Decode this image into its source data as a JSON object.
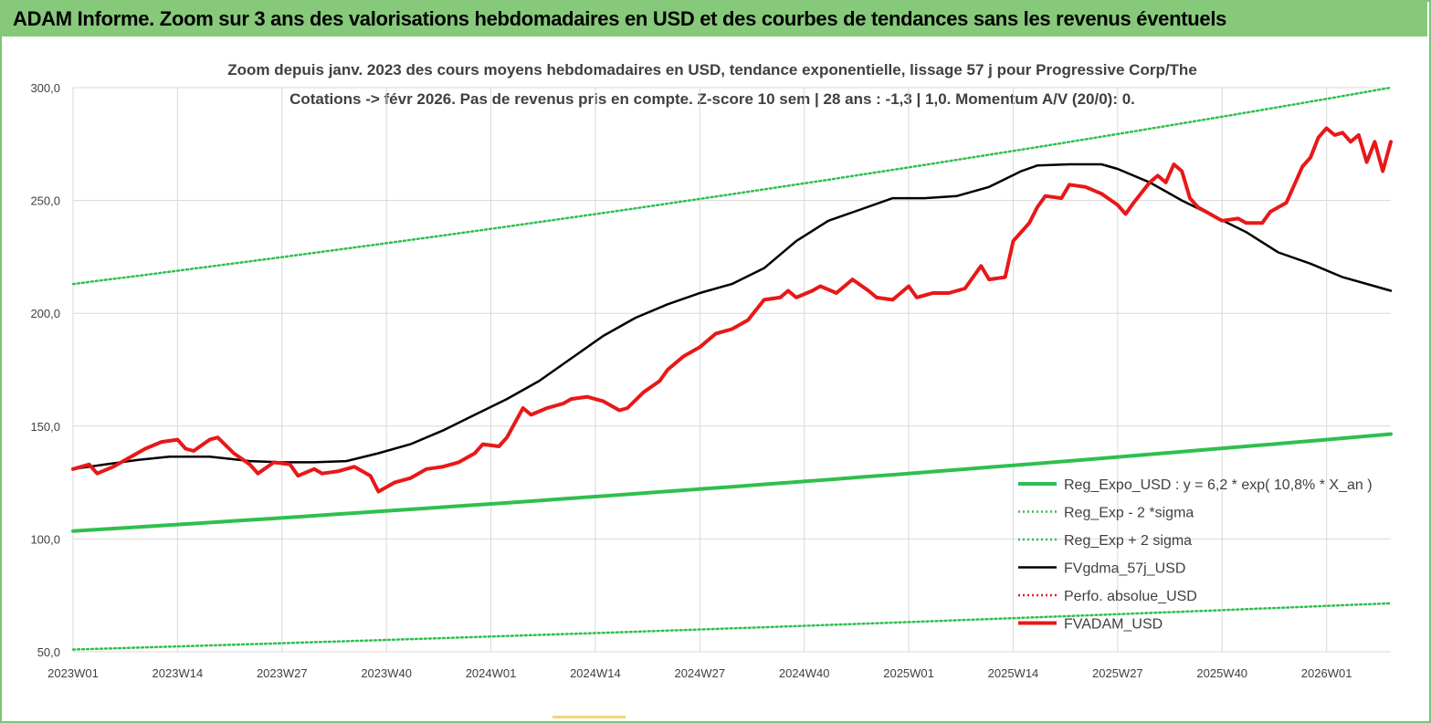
{
  "banner": {
    "title": "ADAM Informe. Zoom sur 3 ans des valorisations hebdomadaires en USD et des courbes de tendances sans les revenus éventuels"
  },
  "chart_data": {
    "type": "line",
    "title_line1": "Zoom depuis janv. 2023 des cours moyens hebdomadaires en USD, tendance exponentielle, lissage 57 j pour Progressive Corp/The",
    "title_line2": "Cotations -> févr 2026.  Pas de revenus pris en compte. Z-score 10 sem  | 28 ans : -1,3  | 1,0. Momentum A/V (20/0): 0.",
    "xlabel": "",
    "ylabel": "",
    "ylim": [
      50,
      300
    ],
    "yticks": [
      "50,0",
      "100,0",
      "150,0",
      "200,0",
      "250,0",
      "300,0"
    ],
    "ytick_values": [
      50,
      100,
      150,
      200,
      250,
      300
    ],
    "xticks": [
      "2023W01",
      "2023W14",
      "2023W27",
      "2023W40",
      "2024W01",
      "2024W14",
      "2024W27",
      "2024W40",
      "2025W01",
      "2025W14",
      "2025W27",
      "2025W40",
      "2026W01"
    ],
    "xtick_weeks": [
      0,
      13,
      26,
      39,
      52,
      65,
      78,
      91,
      104,
      117,
      130,
      143,
      156
    ],
    "x_range": [
      0,
      164
    ],
    "grid": true,
    "legend_position": "bottom-right",
    "series": [
      {
        "name": "Reg_Expo_USD : y = 6,2  * exp( 10,8% *  X_an )",
        "style": "solid-thick",
        "color": "#2fbf4f",
        "points": [
          [
            0,
            103.5
          ],
          [
            164,
            146.5
          ]
        ]
      },
      {
        "name": "Reg_Exp - 2 *sigma",
        "style": "dotted",
        "color": "#2fbf4f",
        "points": [
          [
            0,
            51
          ],
          [
            164,
            71.5
          ]
        ]
      },
      {
        "name": "Reg_Exp + 2 sigma",
        "style": "dotted",
        "color": "#2fbf4f",
        "points": [
          [
            0,
            213
          ],
          [
            164,
            300
          ]
        ]
      },
      {
        "name": "FVgdma_57j_USD",
        "style": "solid",
        "color": "#000000",
        "points": [
          [
            0,
            131
          ],
          [
            4,
            133
          ],
          [
            8,
            135
          ],
          [
            12,
            136.5
          ],
          [
            17,
            136.5
          ],
          [
            22,
            134.5
          ],
          [
            26,
            134
          ],
          [
            30,
            134
          ],
          [
            34,
            134.5
          ],
          [
            38,
            138
          ],
          [
            42,
            142
          ],
          [
            46,
            148
          ],
          [
            50,
            155
          ],
          [
            54,
            162
          ],
          [
            58,
            170
          ],
          [
            62,
            180
          ],
          [
            66,
            190
          ],
          [
            70,
            198
          ],
          [
            74,
            204
          ],
          [
            78,
            209
          ],
          [
            82,
            213
          ],
          [
            86,
            220
          ],
          [
            90,
            232
          ],
          [
            94,
            241
          ],
          [
            98,
            246
          ],
          [
            102,
            251
          ],
          [
            106,
            251
          ],
          [
            110,
            252
          ],
          [
            114,
            256
          ],
          [
            118,
            263
          ],
          [
            120,
            265.5
          ],
          [
            124,
            266
          ],
          [
            128,
            266
          ],
          [
            130,
            264
          ],
          [
            134,
            258
          ],
          [
            138,
            250
          ],
          [
            142,
            243
          ],
          [
            146,
            236
          ],
          [
            150,
            227
          ],
          [
            154,
            222
          ],
          [
            158,
            216
          ],
          [
            162,
            212
          ],
          [
            164,
            210
          ]
        ]
      },
      {
        "name": "Perfo. absolue_USD",
        "style": "dotted",
        "color": "#e02020",
        "points": []
      },
      {
        "name": "FVADAM_USD",
        "style": "solid-thick",
        "color": "#e81818",
        "points": [
          [
            0,
            131
          ],
          [
            2,
            133
          ],
          [
            3,
            129
          ],
          [
            5,
            132
          ],
          [
            7,
            136
          ],
          [
            9,
            140
          ],
          [
            11,
            143
          ],
          [
            13,
            144
          ],
          [
            14,
            140
          ],
          [
            15,
            139
          ],
          [
            17,
            144
          ],
          [
            18,
            145
          ],
          [
            20,
            138
          ],
          [
            22,
            133
          ],
          [
            23,
            129
          ],
          [
            25,
            134
          ],
          [
            27,
            133
          ],
          [
            28,
            128
          ],
          [
            30,
            131
          ],
          [
            31,
            129
          ],
          [
            33,
            130
          ],
          [
            35,
            132
          ],
          [
            37,
            128
          ],
          [
            38,
            121
          ],
          [
            40,
            125
          ],
          [
            42,
            127
          ],
          [
            44,
            131
          ],
          [
            46,
            132
          ],
          [
            48,
            134
          ],
          [
            50,
            138
          ],
          [
            51,
            142
          ],
          [
            53,
            141
          ],
          [
            54,
            145
          ],
          [
            56,
            158
          ],
          [
            57,
            155
          ],
          [
            59,
            158
          ],
          [
            61,
            160
          ],
          [
            62,
            162
          ],
          [
            64,
            163
          ],
          [
            66,
            161
          ],
          [
            68,
            157
          ],
          [
            69,
            158
          ],
          [
            71,
            165
          ],
          [
            73,
            170
          ],
          [
            74,
            175
          ],
          [
            76,
            181
          ],
          [
            78,
            185
          ],
          [
            80,
            191
          ],
          [
            82,
            193
          ],
          [
            84,
            197
          ],
          [
            86,
            206
          ],
          [
            88,
            207
          ],
          [
            89,
            210
          ],
          [
            90,
            207
          ],
          [
            92,
            210
          ],
          [
            93,
            212
          ],
          [
            95,
            209
          ],
          [
            97,
            215
          ],
          [
            99,
            210
          ],
          [
            100,
            207
          ],
          [
            102,
            206
          ],
          [
            104,
            212
          ],
          [
            105,
            207
          ],
          [
            107,
            209
          ],
          [
            109,
            209
          ],
          [
            111,
            211
          ],
          [
            113,
            221
          ],
          [
            114,
            215
          ],
          [
            116,
            216
          ],
          [
            117,
            232
          ],
          [
            119,
            240
          ],
          [
            120,
            247
          ],
          [
            121,
            252
          ],
          [
            123,
            251
          ],
          [
            124,
            257
          ],
          [
            126,
            256
          ],
          [
            128,
            253
          ],
          [
            130,
            248
          ],
          [
            131,
            244
          ],
          [
            132,
            249
          ],
          [
            134,
            258
          ],
          [
            135,
            261
          ],
          [
            136,
            258
          ],
          [
            137,
            266
          ],
          [
            138,
            263
          ],
          [
            139,
            251
          ],
          [
            140,
            247
          ],
          [
            142,
            243
          ],
          [
            143,
            241
          ],
          [
            145,
            242
          ],
          [
            146,
            240
          ],
          [
            148,
            240
          ],
          [
            149,
            245
          ],
          [
            151,
            249
          ],
          [
            152,
            257
          ],
          [
            153,
            265
          ],
          [
            154,
            269
          ],
          [
            155,
            278
          ],
          [
            156,
            282
          ],
          [
            157,
            279
          ],
          [
            158,
            280
          ],
          [
            159,
            276
          ],
          [
            160,
            279
          ],
          [
            161,
            267
          ],
          [
            162,
            276
          ],
          [
            163,
            263
          ],
          [
            164,
            276
          ]
        ]
      }
    ]
  }
}
